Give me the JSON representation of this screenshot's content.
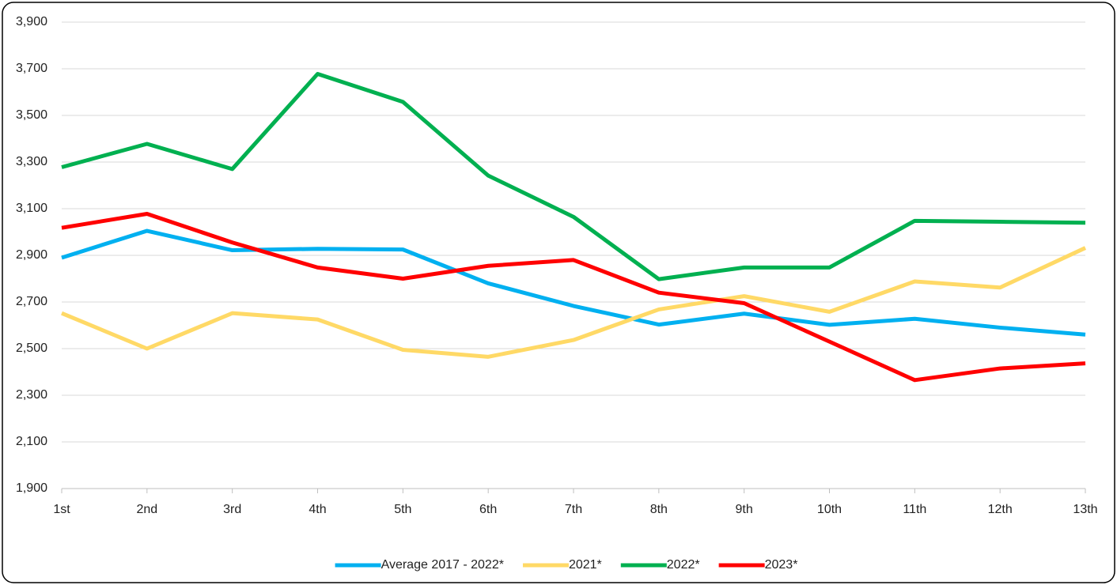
{
  "chart_data": {
    "type": "line",
    "categories": [
      "1st",
      "2nd",
      "3rd",
      "4th",
      "5th",
      "6th",
      "7th",
      "8th",
      "9th",
      "10th",
      "11th",
      "12th",
      "13th"
    ],
    "ylim": [
      1900,
      3900
    ],
    "yticks": [
      {
        "value": 1900,
        "label": "1,900"
      },
      {
        "value": 2100,
        "label": "2,100"
      },
      {
        "value": 2300,
        "label": "2,300"
      },
      {
        "value": 2500,
        "label": "2,500"
      },
      {
        "value": 2700,
        "label": "2,700"
      },
      {
        "value": 2900,
        "label": "2,900"
      },
      {
        "value": 3100,
        "label": "3,100"
      },
      {
        "value": 3300,
        "label": "3,300"
      },
      {
        "value": 3500,
        "label": "3,500"
      },
      {
        "value": 3700,
        "label": "3,700"
      },
      {
        "value": 3900,
        "label": "3,900"
      }
    ],
    "grid": true,
    "legend": "bottom",
    "series": [
      {
        "name": "Average 2017 - 2022*",
        "color": "#00b0f0",
        "values": [
          2890,
          3005,
          2922,
          2928,
          2925,
          2780,
          2683,
          2603,
          2650,
          2602,
          2628,
          2590,
          2560
        ]
      },
      {
        "name": "2021*",
        "color": "#ffd966",
        "values": [
          2652,
          2500,
          2652,
          2625,
          2495,
          2465,
          2537,
          2668,
          2725,
          2658,
          2788,
          2762,
          2932
        ]
      },
      {
        "name": "2022*",
        "color": "#00b050",
        "values": [
          3278,
          3378,
          3270,
          3678,
          3558,
          3242,
          3065,
          2798,
          2848,
          2848,
          3048,
          3044,
          3040
        ]
      },
      {
        "name": "2023*",
        "color": "#ff0000",
        "values": [
          3018,
          3078,
          2955,
          2848,
          2800,
          2855,
          2880,
          2740,
          2695,
          2530,
          2365,
          2415,
          2437
        ]
      }
    ]
  }
}
